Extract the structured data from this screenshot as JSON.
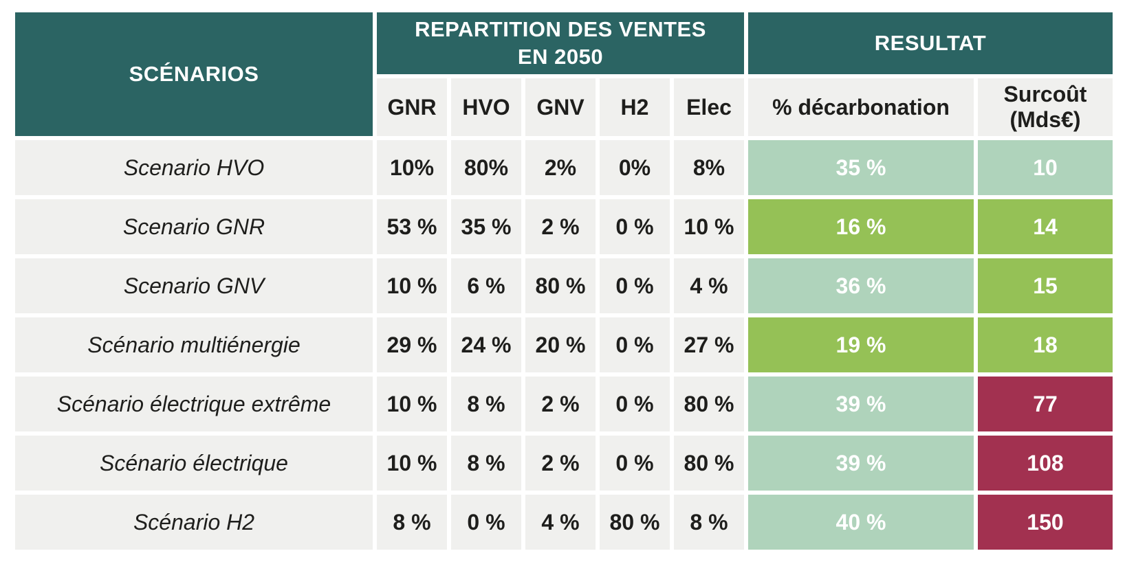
{
  "colors": {
    "teal_header": "#2b6463",
    "row_gray": "#f0f0ee",
    "pale_green": "#afd3bb",
    "bright_green": "#95c156",
    "crimson_red": "#a23150",
    "dark_text": "#1e1e1c",
    "result_text": "#ffffff"
  },
  "header": {
    "scenarios": "SCÉNARIOS",
    "repartition": "REPARTITION DES VENTES EN 2050",
    "resultat": "RESULTAT",
    "fuels": [
      "GNR",
      "HVO",
      "GNV",
      "H2",
      "Elec"
    ],
    "decarbonation": "% décarbonation",
    "surcout": "Surcoût (Mds€)"
  },
  "rows": [
    {
      "name": "Scenario HVO",
      "values": [
        "10%",
        "80%",
        "2%",
        "0%",
        "8%"
      ],
      "decarb": "35 %",
      "surcout": "10"
    },
    {
      "name": "Scenario GNR",
      "values": [
        "53 %",
        "35 %",
        "2 %",
        "0 %",
        "10 %"
      ],
      "decarb": "16 %",
      "surcout": "14"
    },
    {
      "name": "Scenario GNV",
      "values": [
        "10 %",
        "6 %",
        "80 %",
        "0 %",
        "4 %"
      ],
      "decarb": "36 %",
      "surcout": "15"
    },
    {
      "name": "Scénario multiénergie",
      "values": [
        "29 %",
        "24 %",
        "20 %",
        "0 %",
        "27 %"
      ],
      "decarb": "19 %",
      "surcout": "18"
    },
    {
      "name": "Scénario électrique extrême",
      "values": [
        "10 %",
        "8 %",
        "2 %",
        "0 %",
        "80 %"
      ],
      "decarb": "39 %",
      "surcout": "77"
    },
    {
      "name": "Scénario électrique",
      "values": [
        "10 %",
        "8 %",
        "2 %",
        "0 %",
        "80 %"
      ],
      "decarb": "39 %",
      "surcout": "108"
    },
    {
      "name": "Scénario H2",
      "values": [
        "8 %",
        "0 %",
        "4 %",
        "80 %",
        "8 %"
      ],
      "decarb": "40 %",
      "surcout": "150"
    }
  ],
  "chart_data": {
    "type": "table",
    "title": "",
    "column_groups": [
      {
        "label": "REPARTITION DES VENTES EN 2050",
        "columns": [
          "GNR",
          "HVO",
          "GNV",
          "H2",
          "Elec"
        ]
      },
      {
        "label": "RESULTAT",
        "columns": [
          "% décarbonation",
          "Surcoût (Mds€)"
        ]
      }
    ],
    "columns": [
      "SCÉNARIOS",
      "GNR",
      "HVO",
      "GNV",
      "H2",
      "Elec",
      "% décarbonation",
      "Surcoût (Mds€)"
    ],
    "rows": [
      [
        "Scenario HVO",
        "10%",
        "80%",
        "2%",
        "0%",
        "8%",
        "35 %",
        "10"
      ],
      [
        "Scenario GNR",
        "53 %",
        "35 %",
        "2 %",
        "0 %",
        "10 %",
        "16 %",
        "14"
      ],
      [
        "Scenario GNV",
        "10 %",
        "6 %",
        "80 %",
        "0 %",
        "4 %",
        "36 %",
        "15"
      ],
      [
        "Scénario multiénergie",
        "29 %",
        "24 %",
        "20 %",
        "0 %",
        "27 %",
        "19 %",
        "18"
      ],
      [
        "Scénario électrique extrême",
        "10 %",
        "8 %",
        "2 %",
        "0 %",
        "80 %",
        "39 %",
        "77"
      ],
      [
        "Scénario électrique",
        "10 %",
        "8 %",
        "2 %",
        "0 %",
        "80 %",
        "39 %",
        "108"
      ],
      [
        "Scénario H2",
        "8 %",
        "0 %",
        "4 %",
        "80 %",
        "8 %",
        "40 %",
        "150"
      ]
    ],
    "cell_highlight_colors": {
      "decarbonation_column": [
        "pale_green",
        "bright_green",
        "pale_green",
        "bright_green",
        "pale_green",
        "pale_green",
        "pale_green"
      ],
      "surcout_column": [
        "pale_green",
        "bright_green",
        "bright_green",
        "bright_green",
        "crimson_red",
        "crimson_red",
        "crimson_red"
      ]
    },
    "legend_position": "none",
    "grid": "white gaps between cells"
  }
}
